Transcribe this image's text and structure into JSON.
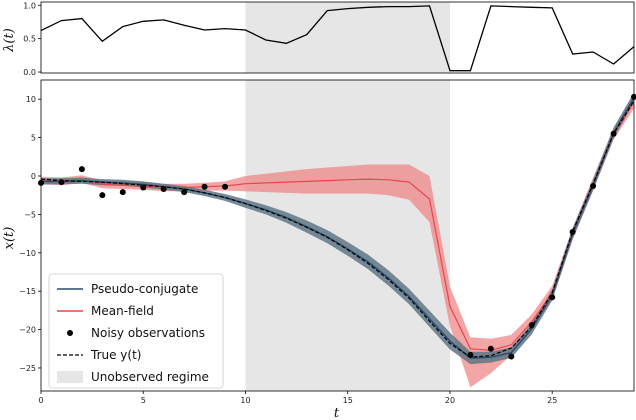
{
  "chart_data": [
    {
      "type": "line",
      "ylabel": "λ(t)",
      "xlim": [
        0,
        29
      ],
      "ylim": [
        0,
        1
      ],
      "yticks": [
        "0.0",
        "0.5",
        "1.0"
      ],
      "grid": false,
      "shaded_region": [
        10,
        20
      ],
      "series": [
        {
          "color": "#000000",
          "x": [
            0,
            1,
            2,
            3,
            4,
            5,
            6,
            7,
            8,
            9,
            10,
            11,
            12,
            13,
            14,
            15,
            16,
            17,
            18,
            19,
            20,
            21,
            22,
            23,
            24,
            25,
            26,
            27,
            28,
            29
          ],
          "y": [
            0.62,
            0.77,
            0.8,
            0.46,
            0.68,
            0.76,
            0.78,
            0.7,
            0.63,
            0.65,
            0.63,
            0.48,
            0.43,
            0.56,
            0.92,
            0.95,
            0.97,
            0.98,
            0.98,
            0.99,
            0.02,
            0.02,
            0.99,
            0.98,
            0.97,
            0.96,
            0.27,
            0.3,
            0.12,
            0.38
          ]
        }
      ]
    },
    {
      "type": "line",
      "xlabel": "t",
      "ylabel": "x(t)",
      "xlim": [
        0,
        29
      ],
      "ylim": [
        -28,
        12.5
      ],
      "xticks": [
        0,
        5,
        10,
        15,
        20,
        25
      ],
      "yticks": [
        10,
        5,
        0,
        -5,
        -10,
        -15,
        -20,
        -25
      ],
      "grid": false,
      "shaded_region": [
        10,
        20
      ],
      "legend_position": "lower-left",
      "x": [
        0,
        1,
        2,
        3,
        4,
        5,
        6,
        7,
        8,
        9,
        10,
        11,
        12,
        13,
        14,
        15,
        16,
        17,
        18,
        19,
        20,
        21,
        22,
        23,
        24,
        25,
        26,
        27,
        28,
        29
      ],
      "series": [
        {
          "name": "Pseudo-conjugate",
          "color": "#2c4d6e",
          "y": [
            -0.7,
            -0.7,
            -0.6,
            -0.8,
            -0.9,
            -1.1,
            -1.4,
            -1.7,
            -2.2,
            -2.8,
            -3.6,
            -4.4,
            -5.4,
            -6.6,
            -7.9,
            -9.5,
            -11.2,
            -13.3,
            -15.7,
            -18.6,
            -21.5,
            -23.7,
            -23.6,
            -23.0,
            -19.9,
            -15.5,
            -7.5,
            -1.2,
            5.6,
            10.2
          ],
          "band": [
            0.4,
            0.4,
            0.4,
            0.4,
            0.4,
            0.4,
            0.4,
            0.4,
            0.4,
            0.45,
            0.55,
            0.6,
            0.7,
            0.8,
            0.85,
            0.9,
            0.95,
            1.0,
            1.0,
            1.05,
            1.1,
            0.8,
            0.7,
            0.7,
            0.7,
            0.7,
            0.7,
            0.7,
            0.7,
            0.7
          ]
        },
        {
          "name": "Mean-field",
          "color": "#e8454f",
          "y": [
            -0.6,
            -0.7,
            -0.4,
            -1.1,
            -1.2,
            -1.3,
            -1.5,
            -1.5,
            -1.4,
            -1.3,
            -1.0,
            -0.9,
            -0.8,
            -0.7,
            -0.6,
            -0.5,
            -0.4,
            -0.5,
            -0.8,
            -3.0,
            -17.0,
            -22.5,
            -22.7,
            -22.0,
            -19.0,
            -15.2,
            -7.5,
            -1.0,
            5.5,
            9.6
          ],
          "band": [
            0.5,
            0.5,
            0.5,
            0.5,
            0.5,
            0.5,
            0.5,
            0.5,
            0.5,
            0.6,
            1.0,
            1.2,
            1.4,
            1.6,
            1.7,
            1.8,
            1.9,
            2.0,
            2.3,
            3.0,
            2.6,
            1.5,
            1.5,
            1.3,
            1.0,
            0.9,
            0.8,
            0.8,
            0.8,
            0.8
          ],
          "band_lower_extra": [
            0,
            0,
            0,
            0,
            0,
            0,
            0,
            0,
            0,
            0,
            0,
            0,
            0,
            0,
            0,
            0,
            0,
            0,
            0,
            0,
            0,
            3.5,
            1.5,
            0,
            0,
            0,
            0,
            0,
            0,
            0
          ]
        },
        {
          "name": "Noisy observations",
          "color": "#000000",
          "marker": "dot",
          "y": [
            -0.9,
            -0.8,
            0.9,
            -2.5,
            -2.1,
            -1.5,
            -1.7,
            -2.1,
            -1.4,
            -1.4,
            null,
            null,
            null,
            null,
            null,
            null,
            null,
            null,
            null,
            null,
            null,
            -23.3,
            -22.5,
            -23.5,
            -19.4,
            -15.8,
            -7.3,
            -1.3,
            5.5,
            10.3
          ]
        },
        {
          "name": "True y(t)",
          "color": "#000000",
          "dash": true,
          "y": [
            -0.4,
            -0.6,
            -0.7,
            -0.8,
            -1.0,
            -1.2,
            -1.4,
            -1.7,
            -2.2,
            -2.8,
            -3.6,
            -4.5,
            -5.5,
            -6.7,
            -8.0,
            -9.6,
            -11.4,
            -13.5,
            -15.9,
            -18.9,
            -21.8,
            -23.6,
            -23.4,
            -22.4,
            -19.6,
            -15.2,
            -7.2,
            -1.0,
            5.5,
            9.8
          ]
        }
      ],
      "legend_extra": {
        "name": "Unobserved regime",
        "color": "#e6e6e6"
      }
    }
  ]
}
